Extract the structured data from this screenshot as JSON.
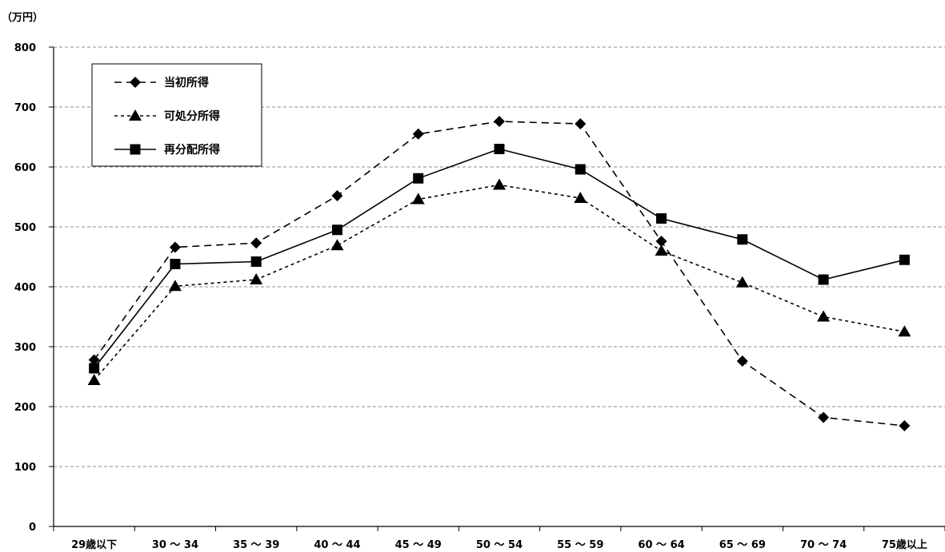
{
  "chart_data": {
    "type": "line",
    "ylabel": "（万円）",
    "ylim": [
      0,
      800
    ],
    "yticks": [
      0,
      100,
      200,
      300,
      400,
      500,
      600,
      700,
      800
    ],
    "grid": true,
    "legend_position": "top-left",
    "categories": [
      "29歳以下",
      "30 ～ 34",
      "35 ～ 39",
      "40 ～ 44",
      "45 ～ 49",
      "50 ～ 54",
      "55 ～ 59",
      "60 ～ 64",
      "65 ～ 69",
      "70 ～ 74",
      "75歳以上"
    ],
    "series": [
      {
        "name": "当初所得",
        "marker": "diamond",
        "dash": "long-dash",
        "color": "#000000",
        "values": [
          278,
          466,
          473,
          552,
          655,
          676,
          672,
          476,
          276,
          182,
          168
        ]
      },
      {
        "name": "可処分所得",
        "marker": "triangle",
        "dash": "short-dash",
        "color": "#000000",
        "values": [
          244,
          401,
          412,
          469,
          546,
          570,
          548,
          460,
          407,
          350,
          325
        ]
      },
      {
        "name": "再分配所得",
        "marker": "square",
        "dash": "solid",
        "color": "#000000",
        "values": [
          264,
          438,
          442,
          495,
          581,
          630,
          596,
          514,
          479,
          412,
          445
        ]
      }
    ]
  }
}
